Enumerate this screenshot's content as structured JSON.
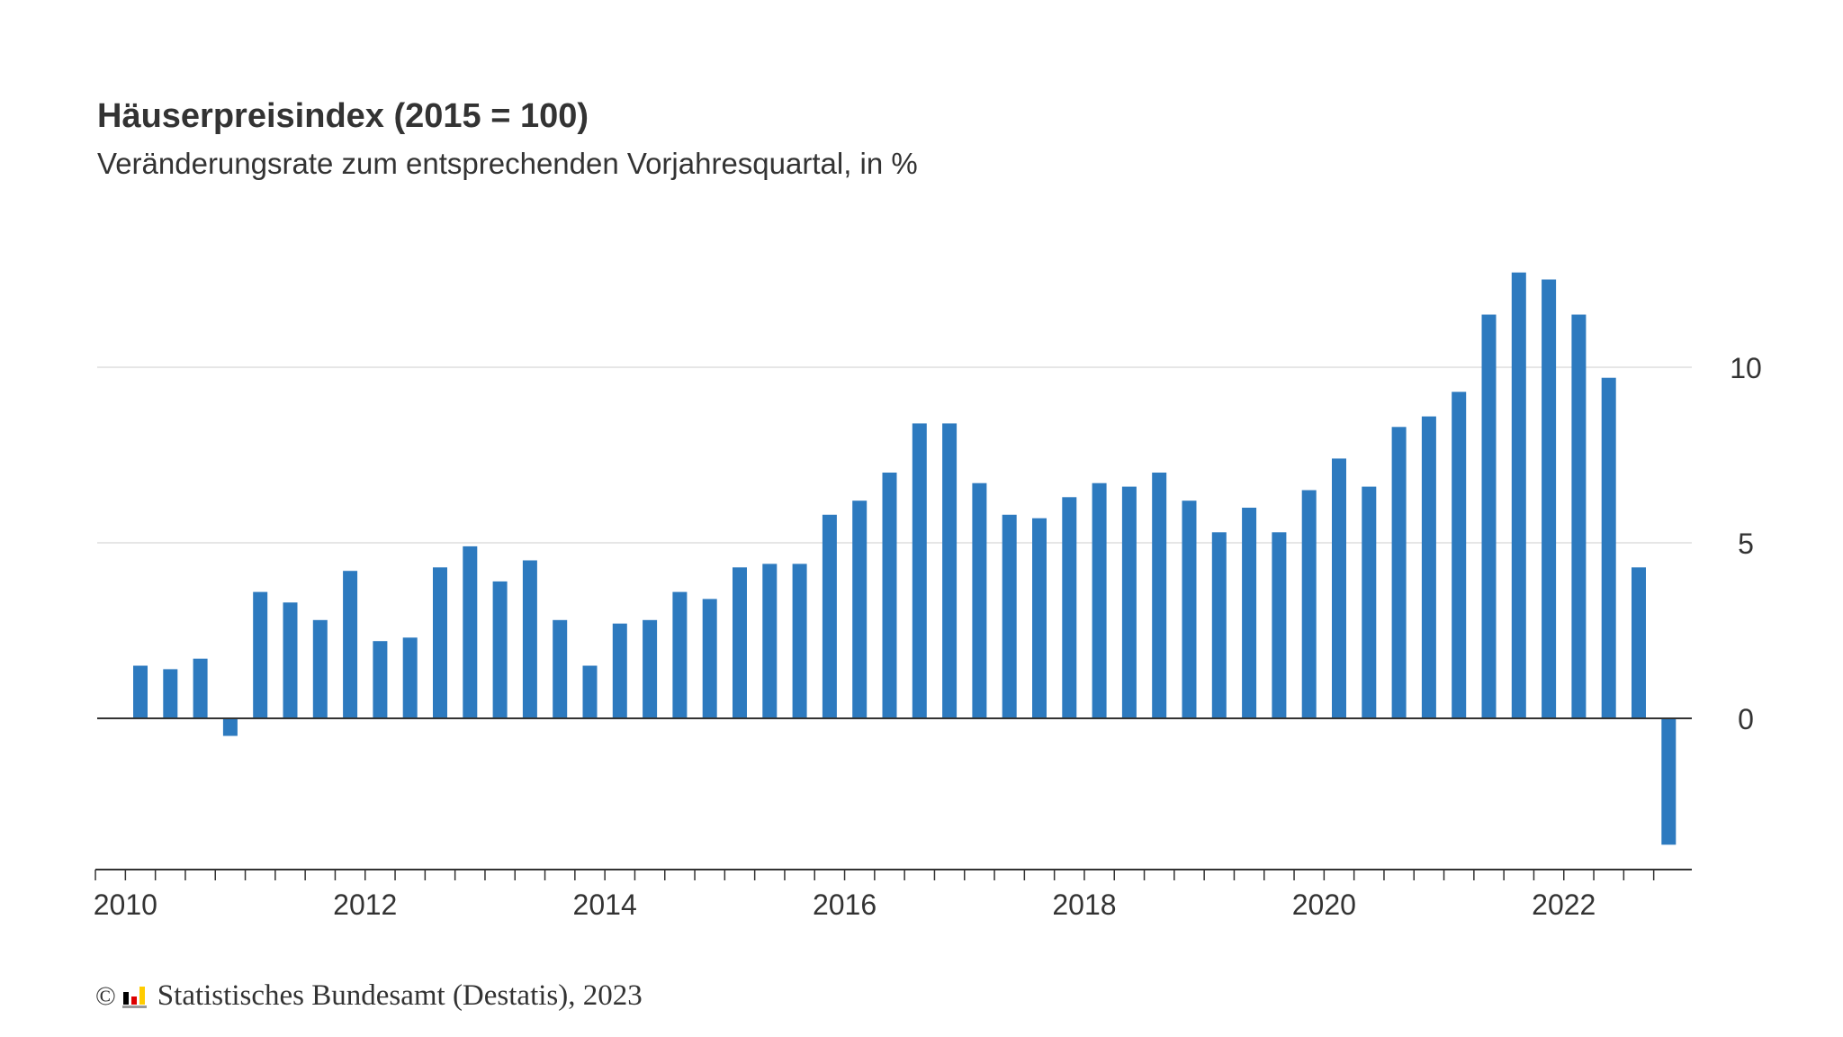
{
  "chart_data": {
    "type": "bar",
    "title": "Häuserpreisindex (2015 = 100)",
    "subtitle": "Veränderungsrate zum entsprechenden Vorjahresquartal, in %",
    "xlabel": "",
    "ylabel": "",
    "ylim": [
      -4.4,
      15
    ],
    "yticks": [
      0,
      5,
      10
    ],
    "y_axis_position": "right",
    "grid": true,
    "bar_color": "#2d7abf",
    "x_tick_labels": [
      "2010",
      "2012",
      "2014",
      "2016",
      "2018",
      "2020",
      "2022"
    ],
    "categories": [
      "2010 Q1",
      "2010 Q2",
      "2010 Q3",
      "2010 Q4",
      "2011 Q1",
      "2011 Q2",
      "2011 Q3",
      "2011 Q4",
      "2012 Q1",
      "2012 Q2",
      "2012 Q3",
      "2012 Q4",
      "2013 Q1",
      "2013 Q2",
      "2013 Q3",
      "2013 Q4",
      "2014 Q1",
      "2014 Q2",
      "2014 Q3",
      "2014 Q4",
      "2015 Q1",
      "2015 Q2",
      "2015 Q3",
      "2015 Q4",
      "2016 Q1",
      "2016 Q2",
      "2016 Q3",
      "2016 Q4",
      "2017 Q1",
      "2017 Q2",
      "2017 Q3",
      "2017 Q4",
      "2018 Q1",
      "2018 Q2",
      "2018 Q3",
      "2018 Q4",
      "2019 Q1",
      "2019 Q2",
      "2019 Q3",
      "2019 Q4",
      "2020 Q1",
      "2020 Q2",
      "2020 Q3",
      "2020 Q4",
      "2021 Q1",
      "2021 Q2",
      "2021 Q3",
      "2021 Q4",
      "2022 Q1",
      "2022 Q2",
      "2022 Q3",
      "2022 Q4"
    ],
    "values": [
      1.5,
      1.4,
      1.7,
      -0.5,
      3.6,
      3.3,
      2.8,
      4.2,
      2.2,
      2.3,
      4.3,
      4.9,
      3.9,
      4.5,
      2.8,
      1.5,
      2.7,
      2.8,
      3.6,
      3.4,
      4.3,
      4.4,
      4.4,
      5.8,
      6.2,
      7.0,
      8.4,
      8.4,
      6.7,
      5.8,
      5.7,
      6.3,
      6.7,
      6.6,
      7.0,
      6.2,
      5.3,
      6.0,
      5.3,
      6.5,
      7.4,
      6.6,
      8.3,
      8.6,
      9.3,
      11.5,
      12.7,
      12.5,
      11.5,
      9.7,
      4.3,
      -3.6
    ]
  },
  "footer": {
    "copyright_symbol": "©",
    "source_text": "Statistisches Bundesamt (Destatis), 2023",
    "logo_colors": [
      "#000000",
      "#dd0000",
      "#ffcc00"
    ]
  }
}
